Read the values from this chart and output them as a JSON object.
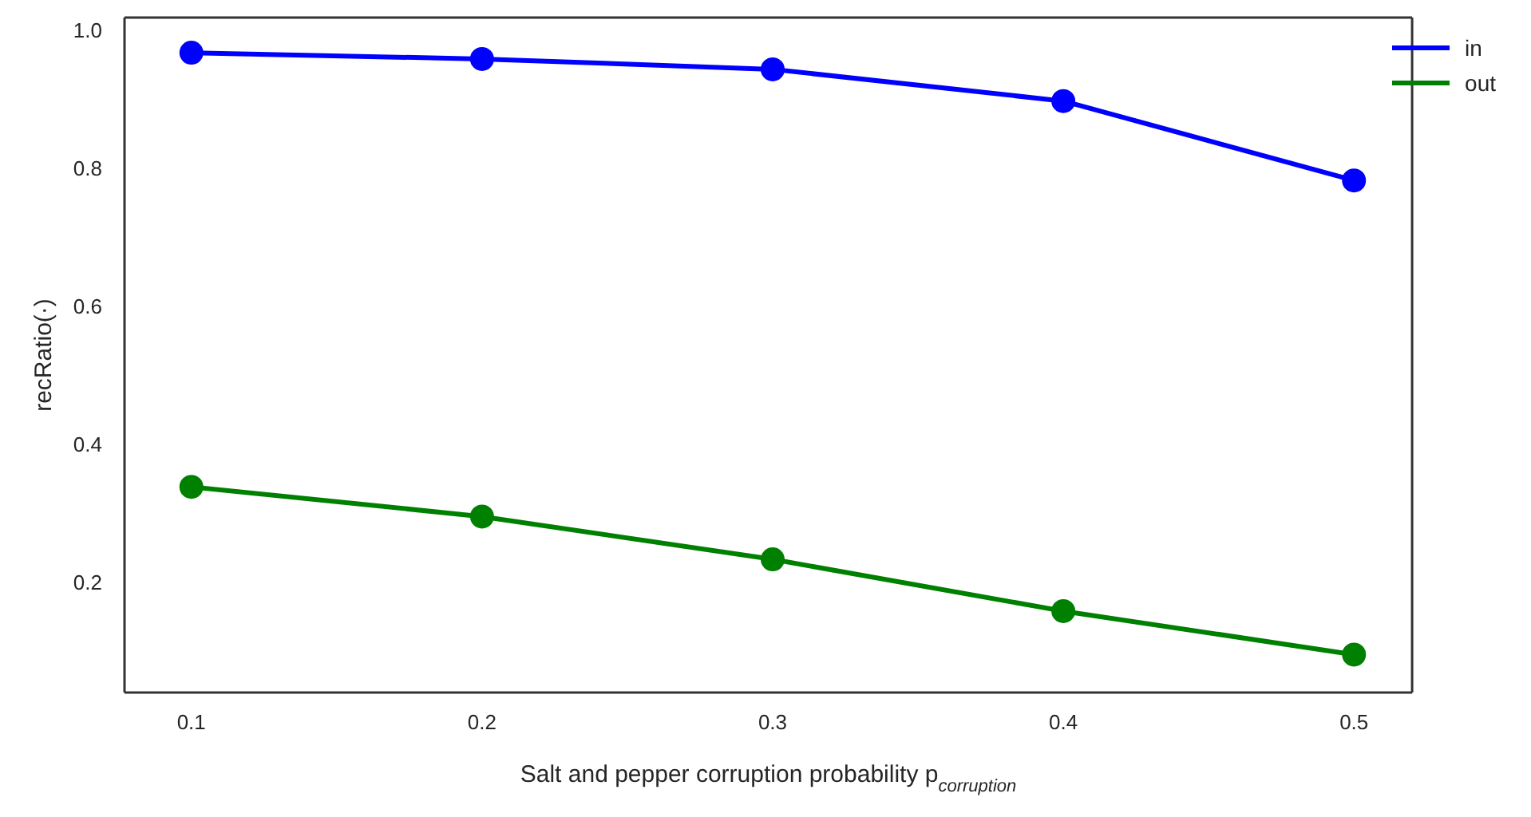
{
  "chart_data": {
    "type": "line",
    "xlabel": "Salt and pepper corruption probability p$_{corruption}$",
    "ylabel": "recRatio(·)",
    "x": [
      0.1,
      0.2,
      0.3,
      0.4,
      0.5
    ],
    "series": [
      {
        "name": "in",
        "color": "#0000ff",
        "values": [
          0.967,
          0.958,
          0.943,
          0.897,
          0.782
        ]
      },
      {
        "name": "out",
        "color": "#008000",
        "values": [
          0.338,
          0.295,
          0.233,
          0.158,
          0.095
        ]
      }
    ],
    "xlim": [
      0.077,
      0.52
    ],
    "xticks": [
      0.1,
      0.2,
      0.3,
      0.4,
      0.5
    ],
    "ylim": [
      0.04,
      1.018
    ],
    "yticks": [
      {
        "value": 0.2,
        "label": "0.2"
      },
      {
        "value": 0.4,
        "label": "0.4"
      },
      {
        "value": 0.6,
        "label": "0.6"
      },
      {
        "value": 0.8,
        "label": "0.8"
      },
      {
        "value": 1,
        "label": "1.0"
      }
    ],
    "grid": false,
    "legend": "top right",
    "marker": "circle",
    "line_style": "solid"
  }
}
